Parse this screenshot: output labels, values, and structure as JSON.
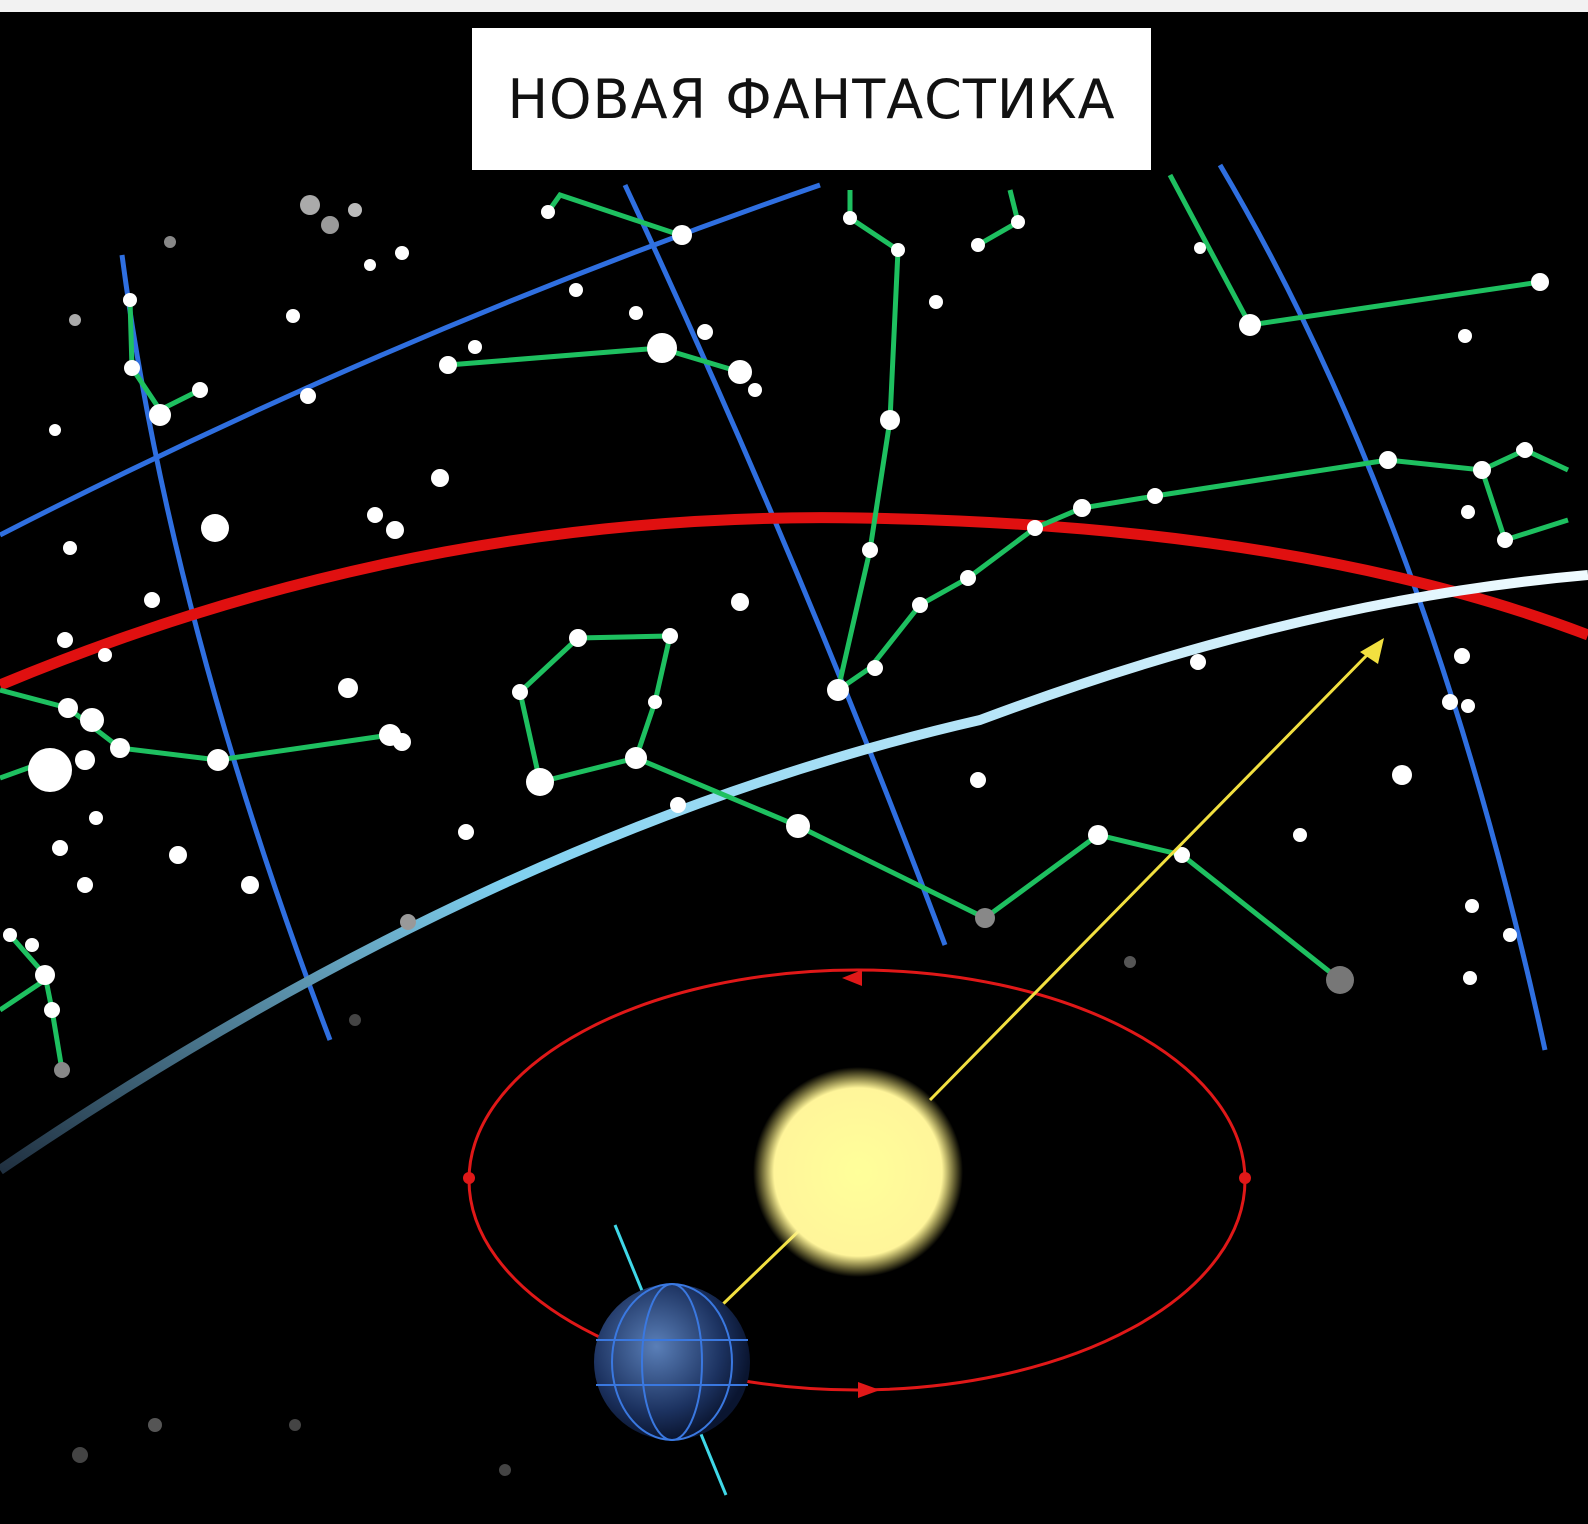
{
  "header": {
    "title": "НОВАЯ ФАНТАСТИКА"
  }
}
